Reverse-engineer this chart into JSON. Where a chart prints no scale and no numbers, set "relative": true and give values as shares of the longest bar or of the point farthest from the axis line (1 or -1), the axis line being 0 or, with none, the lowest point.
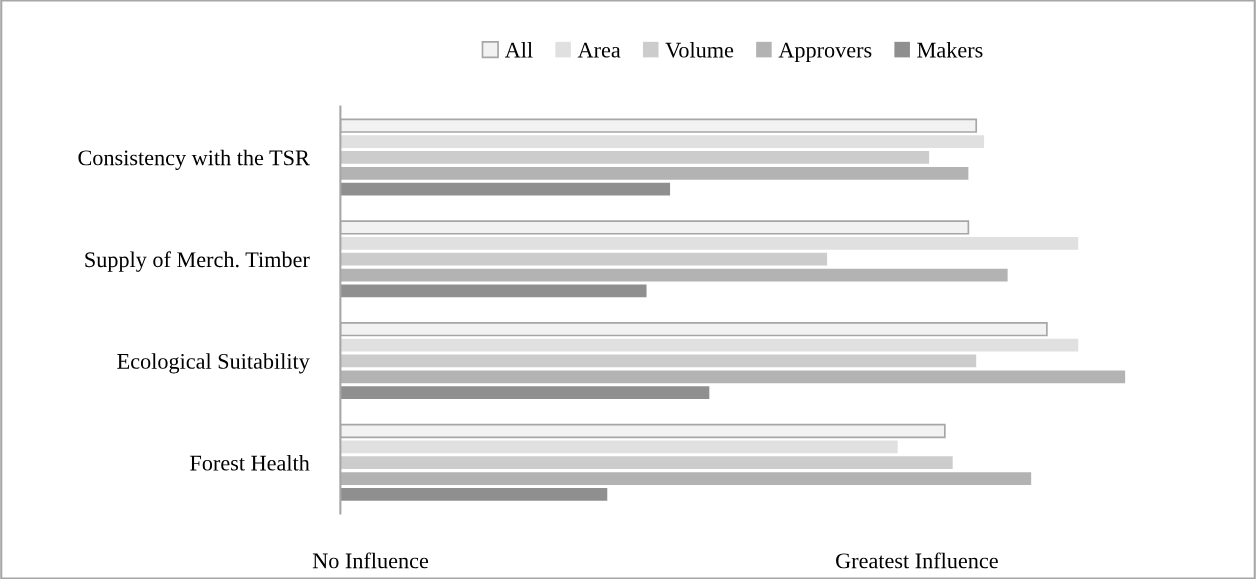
{
  "chart_data": {
    "type": "bar",
    "orientation": "horizontal",
    "relative": true,
    "legend": "top",
    "categories": [
      "Consistency with the TSR",
      "Supply of Merch. Timber",
      "Ecological Suitability",
      "Forest Health"
    ],
    "series": [
      {
        "name": "All",
        "color": "#f2f2f2",
        "values": [
          0.81,
          0.8,
          0.9,
          0.77
        ]
      },
      {
        "name": "Area",
        "color": "#e0e0e0",
        "values": [
          0.82,
          0.94,
          0.94,
          0.71
        ]
      },
      {
        "name": "Volume",
        "color": "#cccccc",
        "values": [
          0.75,
          0.62,
          0.81,
          0.78
        ]
      },
      {
        "name": "Approvers",
        "color": "#b3b3b3",
        "values": [
          0.8,
          0.85,
          1.0,
          0.88
        ]
      },
      {
        "name": "Makers",
        "color": "#8f8f8f",
        "values": [
          0.42,
          0.39,
          0.47,
          0.34
        ]
      }
    ],
    "annotations": [
      "No Influence",
      "Greatest Influence"
    ]
  }
}
